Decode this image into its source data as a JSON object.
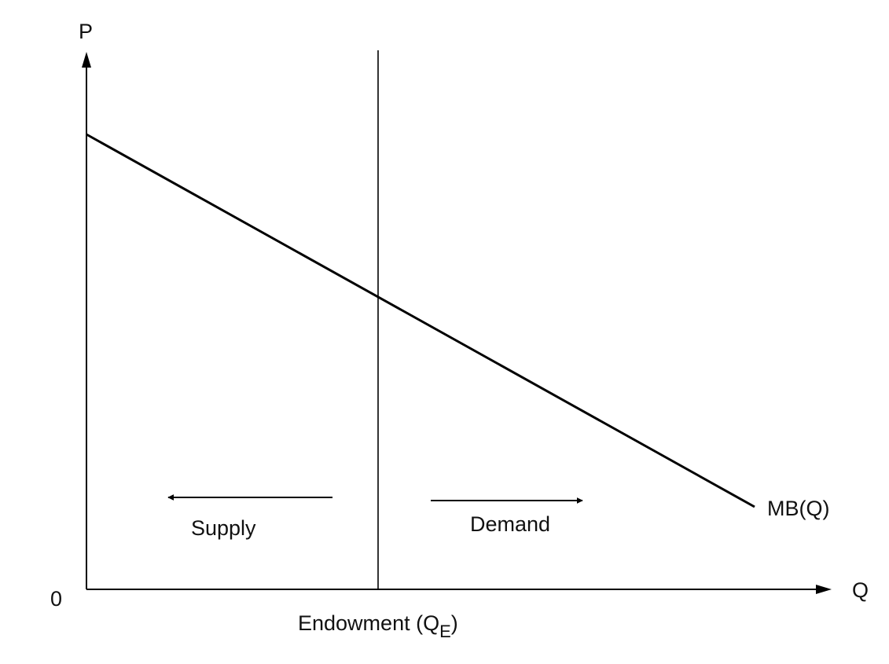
{
  "axes": {
    "y_label": "P",
    "x_label": "Q",
    "origin_label": "0"
  },
  "curve": {
    "label": "MB(Q)"
  },
  "endowment": {
    "label_main": "Endowment (Q",
    "label_sub": "E",
    "label_close": ")"
  },
  "arrows": {
    "supply_label": "Supply",
    "demand_label": "Demand"
  },
  "colors": {
    "stroke": "#000000",
    "text": "#111111"
  }
}
